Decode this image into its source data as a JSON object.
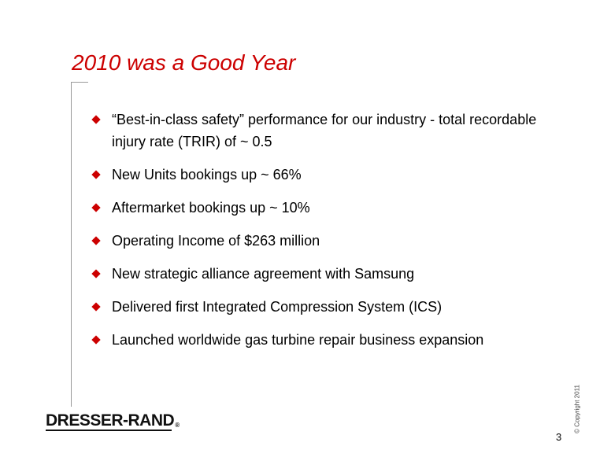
{
  "slide": {
    "title": "2010 was a Good Year",
    "bullets": [
      "“Best-in-class safety” performance for our industry - total recordable injury rate (TRIR) of ~ 0.5",
      "New Units bookings up ~ 66%",
      "Aftermarket bookings up ~ 10%",
      "Operating Income of $263 million",
      "New strategic alliance agreement with Samsung",
      "Delivered first Integrated Compression System (ICS)",
      "Launched worldwide gas turbine repair business expansion"
    ],
    "logo_text": "DRESSER-RAND",
    "logo_mark": "®",
    "copyright": "© Copyright 2011",
    "page_number": "3"
  },
  "colors": {
    "title": "#cc0000",
    "bullet": "#cc0000",
    "frame": "#999999"
  },
  "icons": {
    "bullet": "red-diamond-icon"
  }
}
